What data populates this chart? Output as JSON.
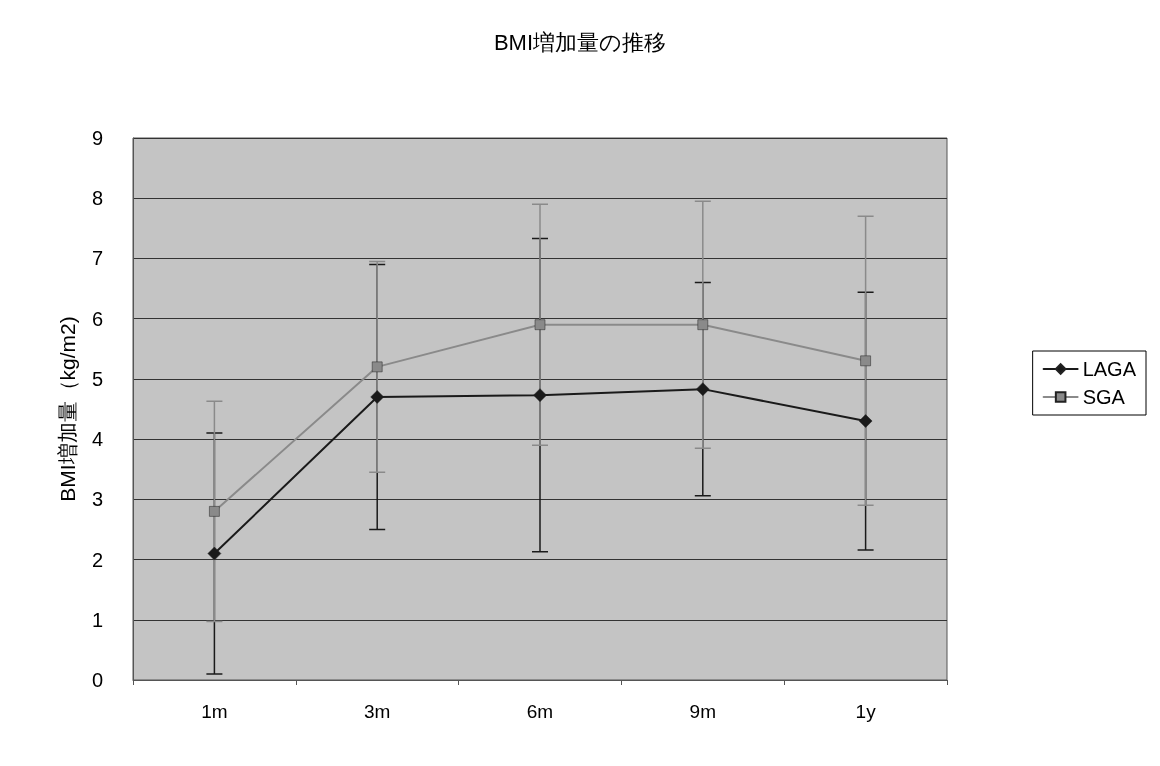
{
  "chart_data": {
    "type": "line",
    "title": "BMI増加量の推移",
    "ylabel": "BMI増加量（kg/m2)",
    "categories": [
      "1m",
      "3m",
      "6m",
      "9m",
      "1y"
    ],
    "series": [
      {
        "name": "LAGA",
        "color": "#1a1a1a",
        "marker": "diamond",
        "values": [
          2.1,
          4.7,
          4.73,
          4.83,
          4.3
        ],
        "errors": [
          2.0,
          2.2,
          2.6,
          1.77,
          2.14
        ]
      },
      {
        "name": "SGA",
        "color": "#8a8a8a",
        "marker": "square",
        "values": [
          2.8,
          5.2,
          5.9,
          5.9,
          5.3
        ],
        "errors": [
          1.83,
          1.75,
          2.0,
          2.05,
          2.4
        ]
      }
    ],
    "ylim": [
      0,
      9
    ],
    "yticks": [
      0,
      1,
      2,
      3,
      4,
      5,
      6,
      7,
      8,
      9
    ],
    "grid": "y",
    "legend": "right",
    "line_style": "solid"
  }
}
